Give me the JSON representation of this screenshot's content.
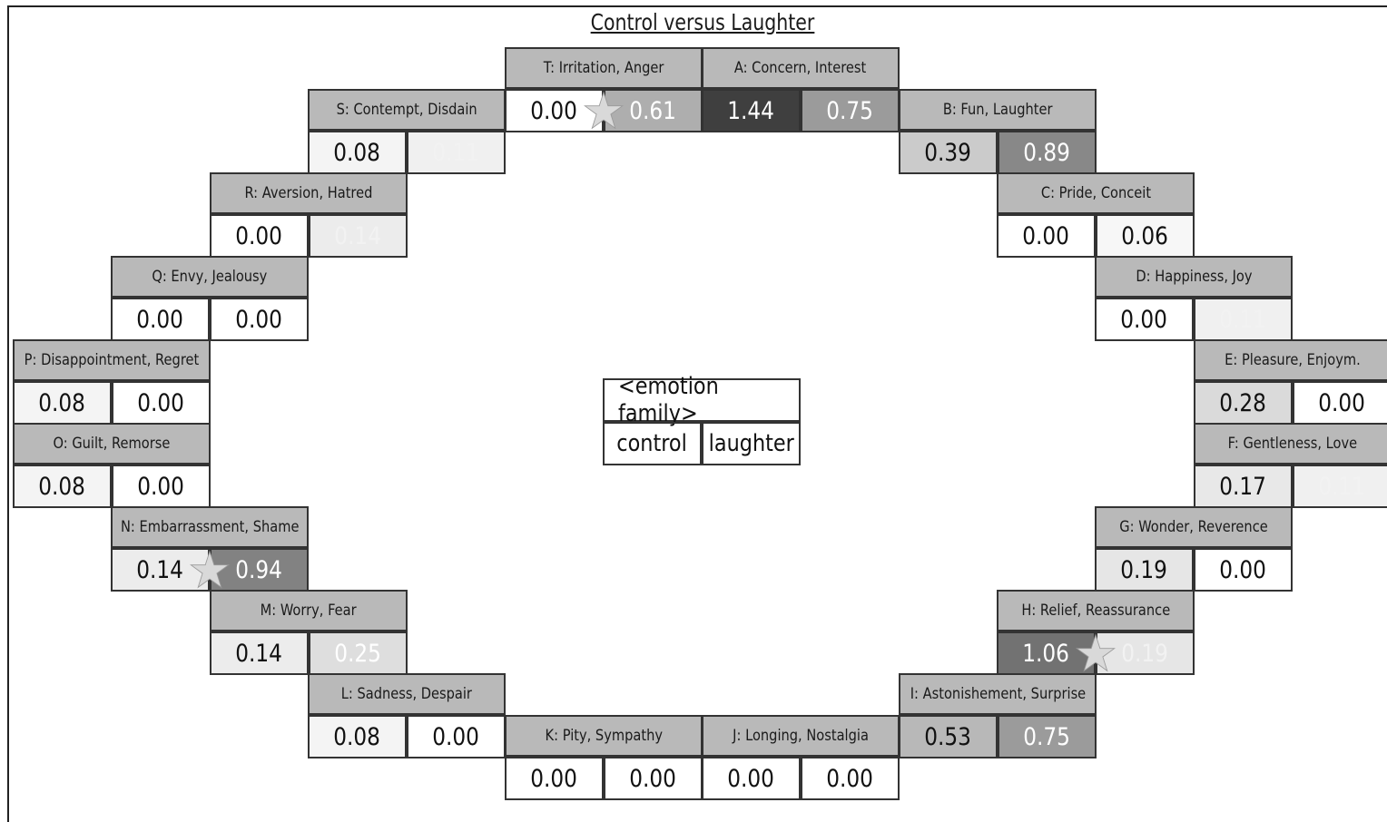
{
  "title": "Control versus Laughter",
  "legend": {
    "title": "<emotion family>",
    "col1": "control",
    "col2": "laughter"
  },
  "families": [
    {
      "label": "T: Irritation, Anger",
      "control": "0.00",
      "laughter": "0.61",
      "starred": true
    },
    {
      "label": "A: Concern, Interest",
      "control": "1.44",
      "laughter": "0.75",
      "starred": false
    },
    {
      "label": "B: Fun, Laughter",
      "control": "0.39",
      "laughter": "0.89",
      "starred": false
    },
    {
      "label": "C: Pride, Conceit",
      "control": "0.00",
      "laughter": "0.06",
      "starred": false
    },
    {
      "label": "D: Happiness, Joy",
      "control": "0.00",
      "laughter": "0.11",
      "starred": false
    },
    {
      "label": "E: Pleasure, Enjoym.",
      "control": "0.28",
      "laughter": "0.00",
      "starred": false
    },
    {
      "label": "F: Gentleness, Love",
      "control": "0.17",
      "laughter": "0.11",
      "starred": false
    },
    {
      "label": "G: Wonder, Reverence",
      "control": "0.19",
      "laughter": "0.00",
      "starred": false
    },
    {
      "label": "H: Relief, Reassurance",
      "control": "1.06",
      "laughter": "0.19",
      "starred": true
    },
    {
      "label": "I: Astonishement, Surprise",
      "control": "0.53",
      "laughter": "0.75",
      "starred": false
    },
    {
      "label": "J: Longing, Nostalgia",
      "control": "0.00",
      "laughter": "0.00",
      "starred": false
    },
    {
      "label": "K: Pity, Sympathy",
      "control": "0.00",
      "laughter": "0.00",
      "starred": false
    },
    {
      "label": "L: Sadness, Despair",
      "control": "0.08",
      "laughter": "0.00",
      "starred": false
    },
    {
      "label": "M: Worry, Fear",
      "control": "0.14",
      "laughter": "0.25",
      "starred": false
    },
    {
      "label": "N: Embarrassment, Shame",
      "control": "0.14",
      "laughter": "0.94",
      "starred": true
    },
    {
      "label": "O: Guilt, Remorse",
      "control": "0.08",
      "laughter": "0.00",
      "starred": false
    },
    {
      "label": "P: Disappointment, Regret",
      "control": "0.08",
      "laughter": "0.00",
      "starred": false
    },
    {
      "label": "Q: Envy, Jealousy",
      "control": "0.00",
      "laughter": "0.00",
      "starred": false
    },
    {
      "label": "R: Aversion, Hatred",
      "control": "0.00",
      "laughter": "0.14",
      "starred": false
    },
    {
      "label": "S: Contempt, Disdain",
      "control": "0.08",
      "laughter": "0.11",
      "starred": false
    }
  ],
  "colors": {
    "label_bg": "#b9b9b9",
    "border": "#333333",
    "star": "#d9d9d9"
  }
}
